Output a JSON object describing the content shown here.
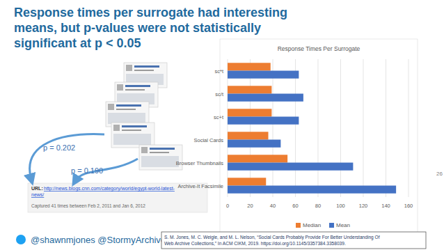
{
  "slide": {
    "title": [
      "Response times per surrogate had interesting",
      "means, but p-values were not statistically",
      "significant at p < 0.05"
    ],
    "p_values": [
      "p = 0.202",
      "p = 0.190"
    ],
    "url_label": "URL:",
    "url": [
      "http://news.blogs.cnn.com/category/world/egypt-world-latest-",
      "news/"
    ],
    "captured": "Captured 41 times between Feb 2, 2011 and Jan 6, 2012",
    "handles": "@shawnmjones @StormyArchives",
    "citation": [
      "S. M. Jones, M. C. Weigle, and M. L. Nelson, “Social Cards Probably Provide For Better Understanding Of",
      "Web Archive Collections,” In ACM CIKM, 2019. https://doi.org/10.1145/3357384.3358039."
    ],
    "page": "26"
  },
  "chart_data": {
    "type": "bar",
    "title": "Response Times Per Surrogate",
    "orientation": "horizontal",
    "categories": [
      "sc*t",
      "sc/t",
      "sc+t",
      "Social Cards",
      "Browser Thumbnails",
      "Archive-It Facsimile"
    ],
    "series": [
      {
        "name": "Median",
        "color": "#ed7d31",
        "values": [
          38,
          39,
          39,
          36,
          53,
          34
        ]
      },
      {
        "name": "Mean",
        "color": "#4472c4",
        "values": [
          63,
          67,
          63,
          47,
          111,
          149
        ]
      }
    ],
    "xlim": [
      0,
      160
    ],
    "xticks": [
      0,
      20,
      40,
      60,
      80,
      100,
      120,
      140,
      160
    ],
    "grid": true,
    "legend": "bottom"
  }
}
